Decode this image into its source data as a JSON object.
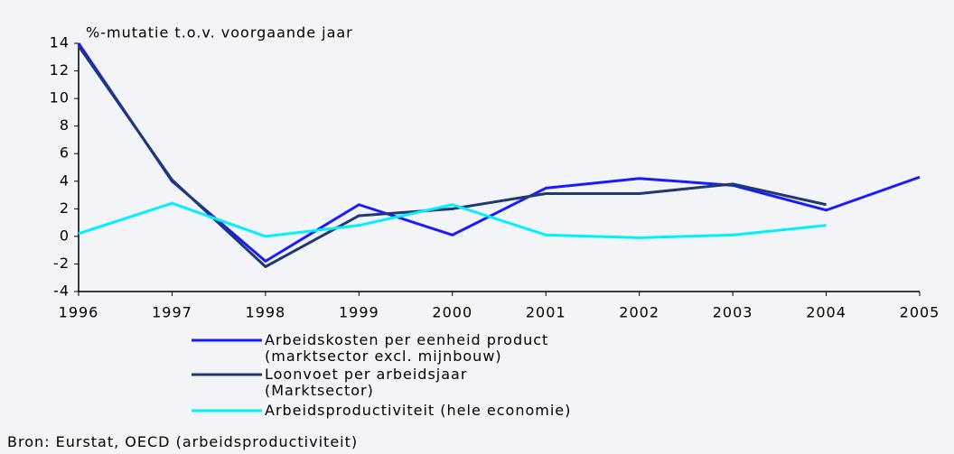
{
  "chart_data": {
    "type": "line",
    "ylabel": "%-mutatie t.o.v. voorgaande jaar",
    "x": [
      1996,
      1997,
      1998,
      1999,
      2000,
      2001,
      2002,
      2003,
      2004,
      2005
    ],
    "xlim": [
      1996,
      2005
    ],
    "xticks": [
      1996,
      1997,
      1998,
      1999,
      2000,
      2001,
      2002,
      2003,
      2004,
      2005
    ],
    "ylim": [
      -4,
      14
    ],
    "yticks": [
      -4,
      -2,
      0,
      2,
      4,
      6,
      8,
      10,
      12,
      14
    ],
    "grid": false,
    "series": [
      {
        "name": "Arbeidskosten per eenheid product\n(marktsector excl. mijnbouw)",
        "color": "#1a1aff",
        "values": [
          14,
          4,
          -1.8,
          2.3,
          0.1,
          3.5,
          4.2,
          3.7,
          1.9,
          4.3
        ]
      },
      {
        "name": "Loonvoet per arbeidsjaar\n(Marktsector)",
        "color": "#1f3a6e",
        "values": [
          13.8,
          4.1,
          -2.2,
          1.5,
          2.0,
          3.1,
          3.1,
          3.8,
          2.3,
          null
        ]
      },
      {
        "name": "Arbeidsproductiviteit (hele economie)",
        "color": "#00f0ff",
        "values": [
          0.2,
          2.4,
          0,
          0.8,
          2.3,
          0.1,
          -0.1,
          0.1,
          0.8,
          null
        ]
      }
    ],
    "source": "Bron: Eurstat, OECD (arbeidsproductiviteit)"
  }
}
